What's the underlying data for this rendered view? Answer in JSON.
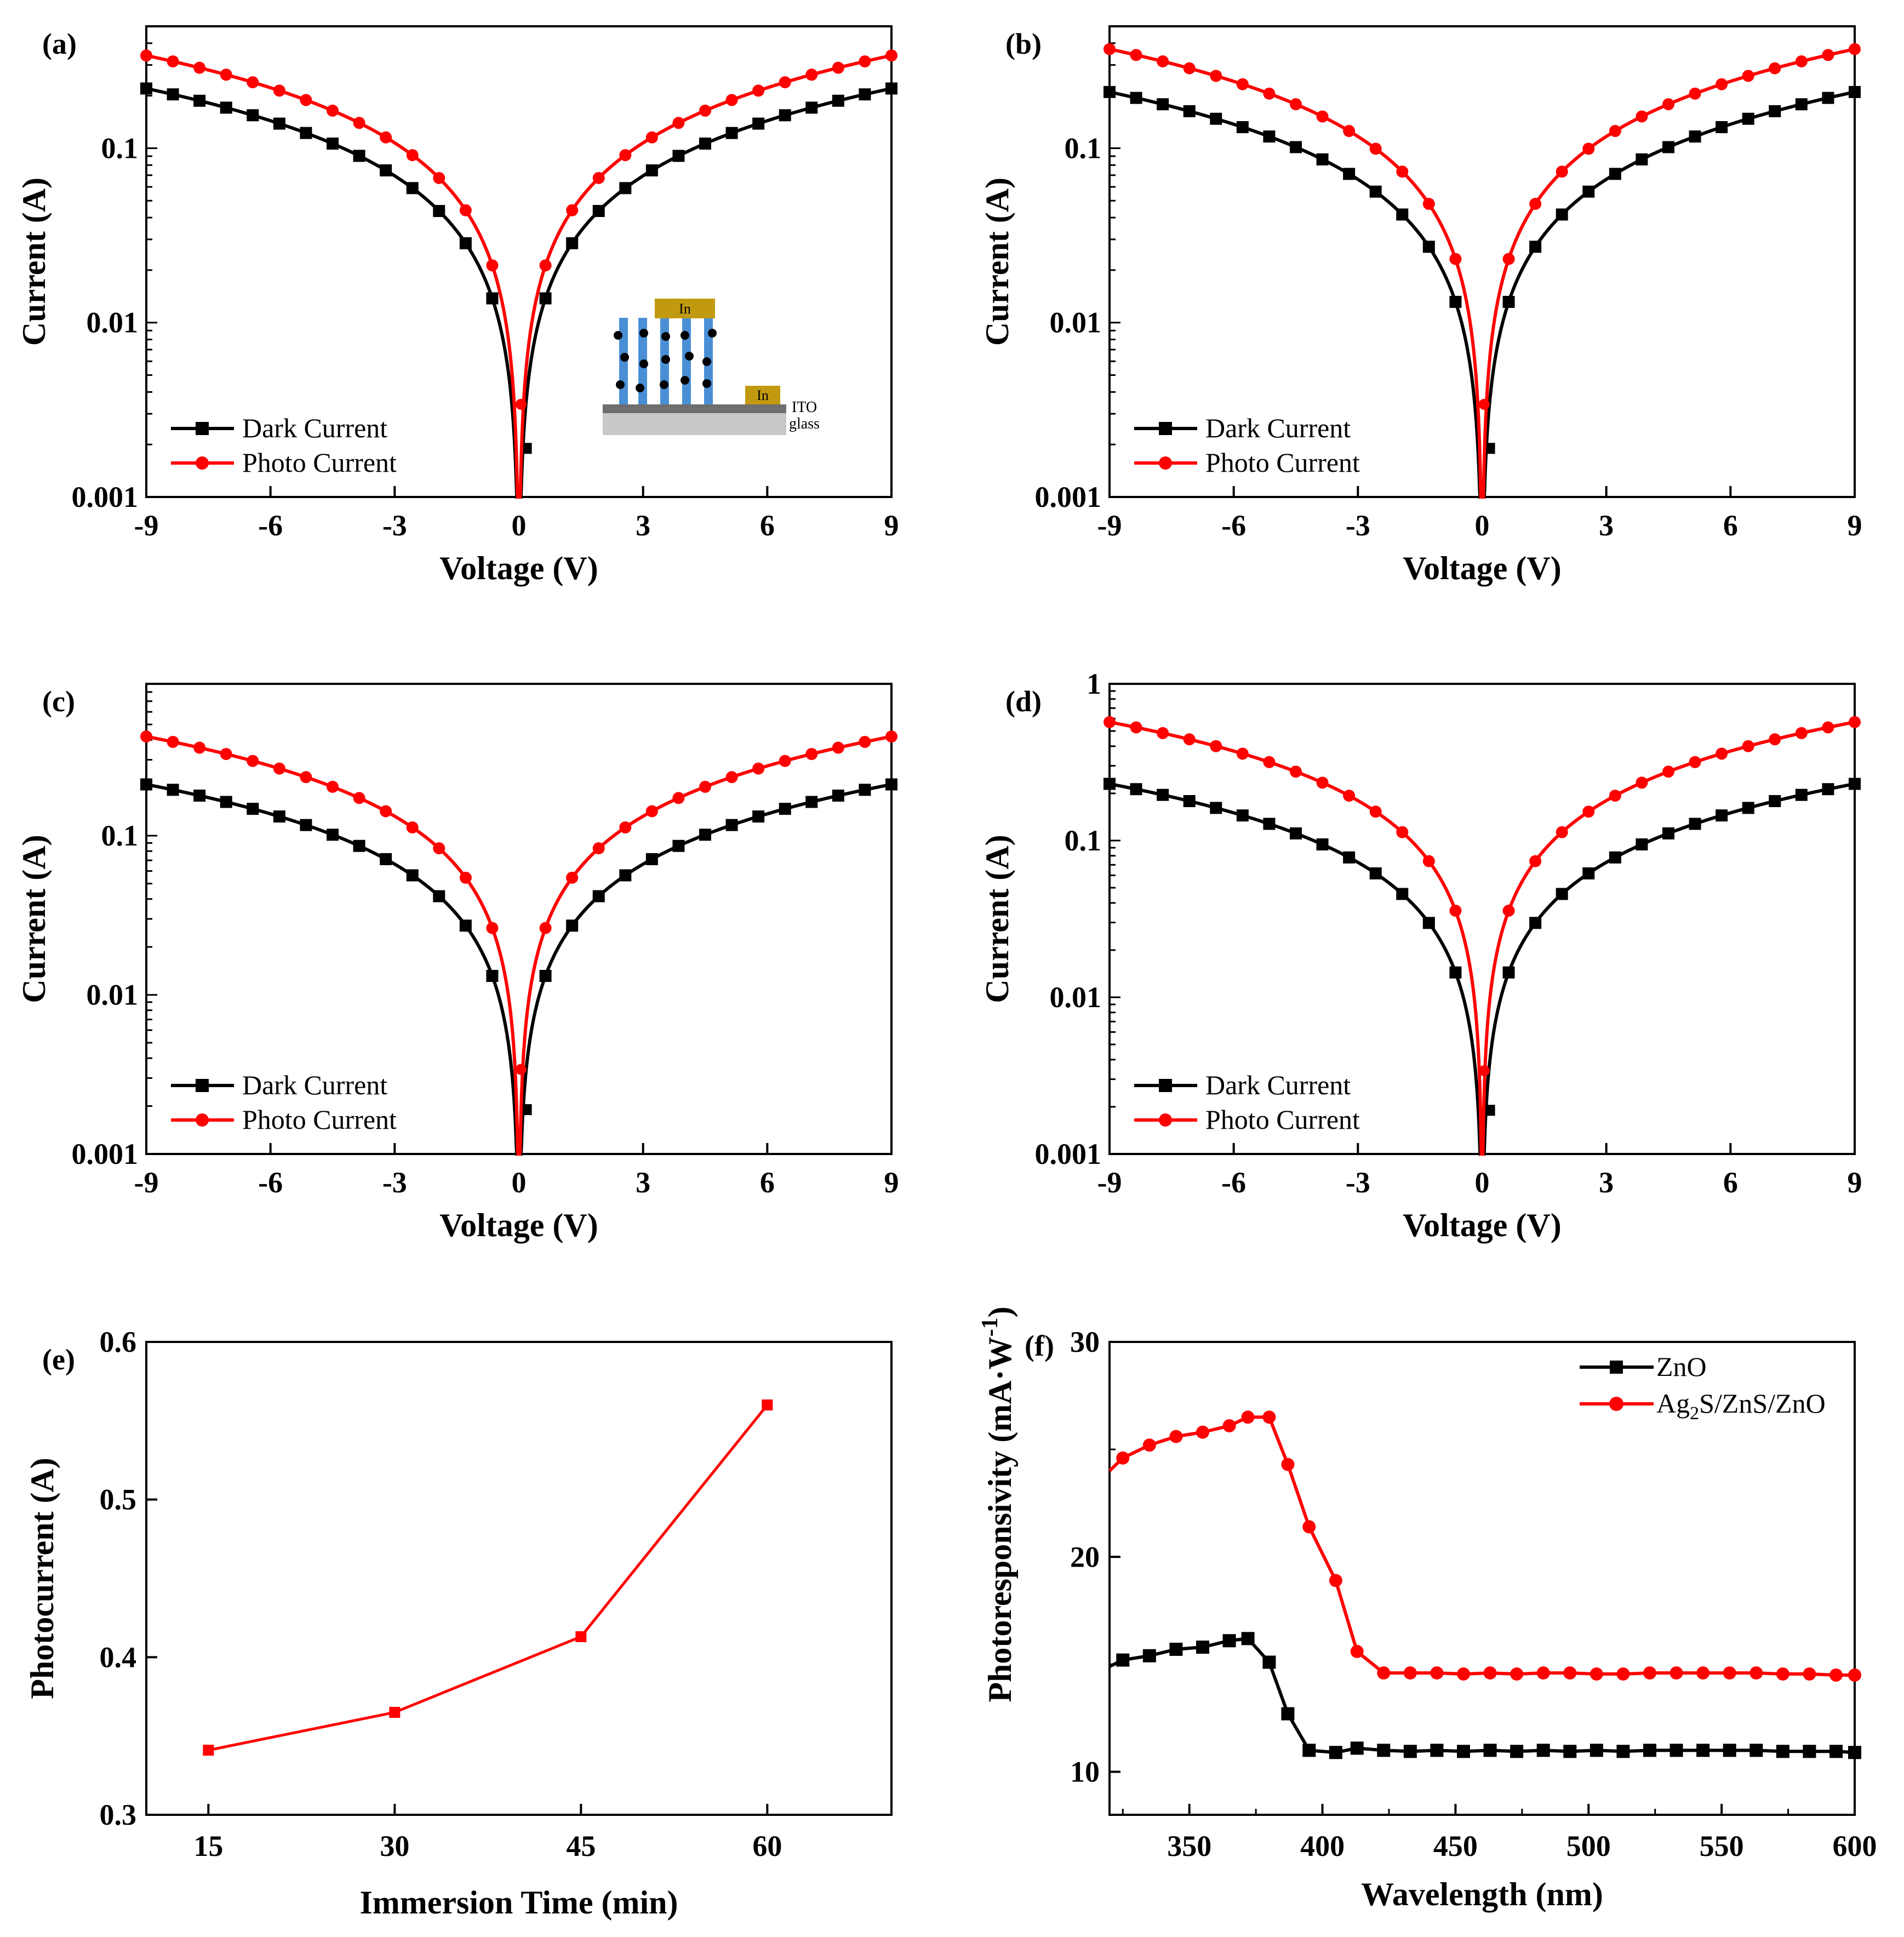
{
  "colors": {
    "dark": "#000000",
    "photo": "#ff0000",
    "zno": "#000000",
    "ag2s": "#ff0000"
  },
  "chart_data": [
    {
      "panel": "(a)",
      "type": "line",
      "scale": "log",
      "xlabel": "Voltage (V)",
      "ylabel": "Current (A)",
      "xlim": [
        -9,
        9
      ],
      "ylim": [
        0.001,
        0.5
      ],
      "xticks": [
        "-9",
        "-6",
        "-3",
        "0",
        "3",
        "6",
        "9"
      ],
      "yticks": [
        "0.001",
        "0.01",
        "0.1"
      ],
      "legend": [
        "Dark Current",
        "Photo Current"
      ],
      "legend_position": "lower-left",
      "inset": {
        "labels": [
          "In",
          "In",
          "ITO",
          "glass"
        ]
      },
      "series": [
        {
          "name": "Dark Current",
          "i_at_9V": 0.22
        },
        {
          "name": "Photo Current",
          "i_at_9V": 0.34
        }
      ]
    },
    {
      "panel": "(b)",
      "type": "line",
      "scale": "log",
      "xlabel": "Voltage (V)",
      "ylabel": "Current (A)",
      "xlim": [
        -9,
        9
      ],
      "ylim": [
        0.001,
        0.5
      ],
      "xticks": [
        "-9",
        "-6",
        "-3",
        "0",
        "3",
        "6",
        "9"
      ],
      "yticks": [
        "0.001",
        "0.01",
        "0.1"
      ],
      "legend": [
        "Dark Current",
        "Photo Current"
      ],
      "legend_position": "lower-left",
      "series": [
        {
          "name": "Dark Current",
          "i_at_9V": 0.21
        },
        {
          "name": "Photo Current",
          "i_at_9V": 0.37
        }
      ]
    },
    {
      "panel": "(c)",
      "type": "line",
      "scale": "log",
      "xlabel": "Voltage (V)",
      "ylabel": "Current (A)",
      "xlim": [
        -9,
        9
      ],
      "ylim": [
        0.001,
        0.9
      ],
      "xticks": [
        "-9",
        "-6",
        "-3",
        "0",
        "3",
        "6",
        "9"
      ],
      "yticks": [
        "0.001",
        "0.01",
        "0.1"
      ],
      "legend": [
        "Dark Current",
        "Photo Current"
      ],
      "legend_position": "lower-left",
      "series": [
        {
          "name": "Dark Current",
          "i_at_9V": 0.21
        },
        {
          "name": "Photo Current",
          "i_at_9V": 0.42
        }
      ]
    },
    {
      "panel": "(d)",
      "type": "line",
      "scale": "log",
      "xlabel": "Voltage (V)",
      "ylabel": "Current (A)",
      "xlim": [
        -9,
        9
      ],
      "ylim": [
        0.001,
        1
      ],
      "xticks": [
        "-9",
        "-6",
        "-3",
        "0",
        "3",
        "6",
        "9"
      ],
      "yticks": [
        "0.001",
        "0.01",
        "0.1",
        "1"
      ],
      "legend": [
        "Dark Current",
        "Photo Current"
      ],
      "legend_position": "lower-left",
      "series": [
        {
          "name": "Dark Current",
          "i_at_9V": 0.23
        },
        {
          "name": "Photo Current",
          "i_at_9V": 0.57
        }
      ]
    },
    {
      "panel": "(e)",
      "type": "line",
      "xlabel": "Immersion Time (min)",
      "ylabel": "Photocurrent (A)",
      "xlim": [
        10,
        70
      ],
      "ylim": [
        0.3,
        0.6
      ],
      "xticks": [
        "15",
        "30",
        "45",
        "60"
      ],
      "yticks": [
        "0.3",
        "0.4",
        "0.5",
        "0.6"
      ],
      "x": [
        15,
        30,
        45,
        60
      ],
      "series": [
        {
          "name": "Photocurrent",
          "values": [
            0.341,
            0.365,
            0.413,
            0.56
          ]
        }
      ]
    },
    {
      "panel": "(f)",
      "type": "line",
      "xlabel": "Wavelength (nm)",
      "ylabel_main": "Photoresponsivity (mA",
      "ylabel_dot": "·",
      "ylabel_w": "W",
      "ylabel_exp": "-1",
      "ylabel_close": ")",
      "xlim": [
        320,
        600
      ],
      "ylim": [
        8,
        30
      ],
      "xticks": [
        "350",
        "400",
        "450",
        "500",
        "550",
        "600"
      ],
      "yticks": [
        "10",
        "20",
        "30"
      ],
      "legend": [
        "ZnO",
        "Ag2S/ZnS/ZnO"
      ],
      "legend_position": "top-right",
      "legend_parts": {
        "a": "Ag",
        "sub": "2",
        "b": "S/ZnS/ZnO"
      },
      "x": [
        320,
        325,
        335,
        345,
        355,
        365,
        372,
        380,
        387,
        395,
        405,
        413,
        423,
        433,
        443,
        453,
        463,
        473,
        483,
        493,
        503,
        513,
        523,
        533,
        543,
        553,
        563,
        573,
        583,
        593,
        600
      ],
      "series": [
        {
          "name": "ZnO",
          "values": [
            14.9,
            15.2,
            15.4,
            15.7,
            15.8,
            16.1,
            16.2,
            15.1,
            12.7,
            11.0,
            10.9,
            11.1,
            11.0,
            10.95,
            11.0,
            10.95,
            11.0,
            10.95,
            11.0,
            10.95,
            11.0,
            10.95,
            11.0,
            11.0,
            11.0,
            11.0,
            11.0,
            10.95,
            10.95,
            10.95,
            10.9
          ]
        },
        {
          "name": "Ag2S/ZnS/ZnO",
          "values": [
            24.0,
            24.6,
            25.2,
            25.6,
            25.8,
            26.1,
            26.5,
            26.5,
            24.3,
            21.4,
            18.9,
            15.6,
            14.6,
            14.6,
            14.6,
            14.55,
            14.6,
            14.55,
            14.6,
            14.6,
            14.55,
            14.55,
            14.6,
            14.6,
            14.6,
            14.6,
            14.6,
            14.55,
            14.55,
            14.5,
            14.5
          ]
        }
      ]
    }
  ]
}
